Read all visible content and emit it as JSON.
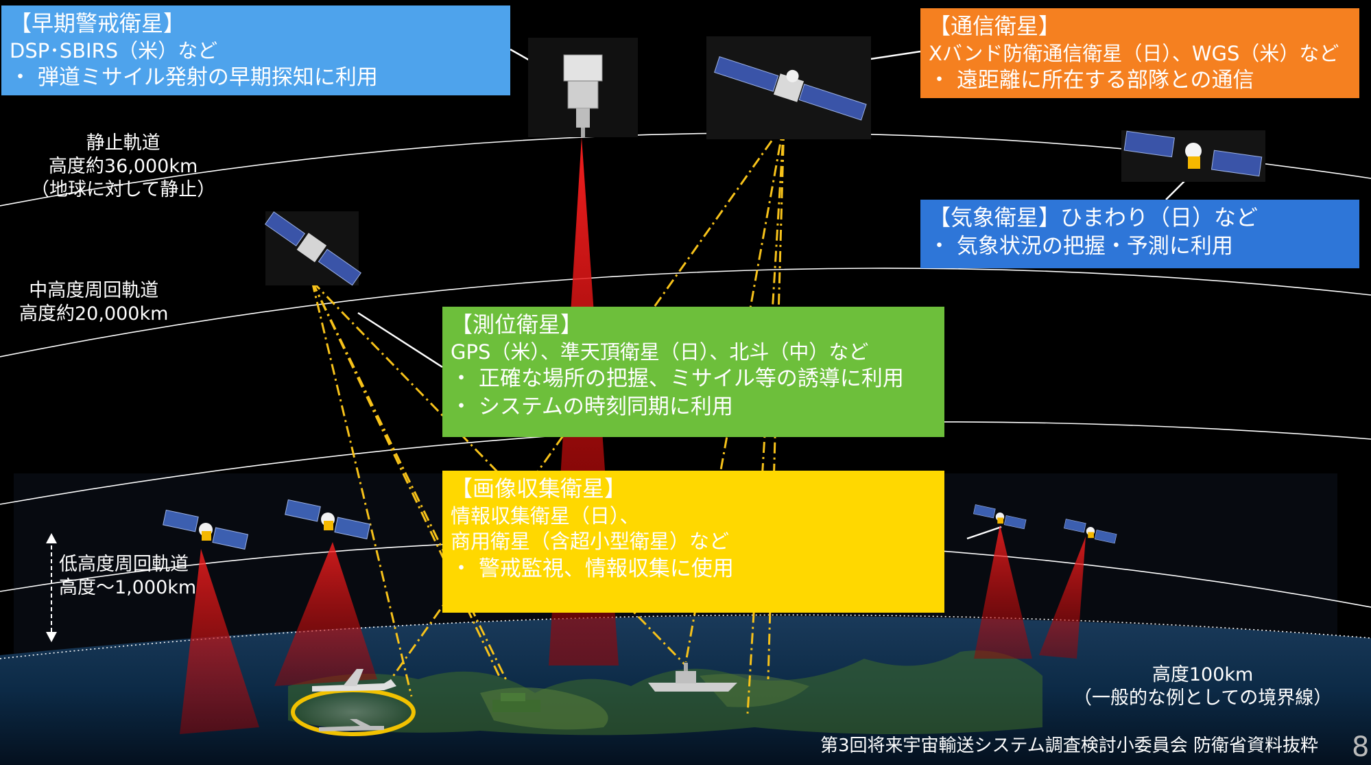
{
  "early_warning": {
    "title": "【早期警戒衛星】",
    "examples": "DSP･SBIRS（米）など",
    "bullet": "・ 弾道ミサイル発射の早期探知に利用"
  },
  "communications": {
    "title": "【通信衛星】",
    "examples": "Xバンド防衛通信衛星（日）、WGS（米）など",
    "bullet": "・ 遠距離に所在する部隊との通信"
  },
  "weather": {
    "title": "【気象衛星】ひまわり（日）など",
    "bullet": "・ 気象状況の把握・予測に利用"
  },
  "positioning": {
    "title": "【測位衛星】",
    "examples": "GPS（米）、準天頂衛星（日）、北斗（中）など",
    "bullet1": "・ 正確な場所の把握、ミサイル等の誘導に利用",
    "bullet2": "・ システムの時刻同期に利用"
  },
  "imaging": {
    "title": "【画像収集衛星】",
    "line1": "情報収集衛星（日）、",
    "line2": "商用衛星（含超小型衛星）など",
    "bullet": "・ 警戒監視、情報収集に使用"
  },
  "orbits": {
    "geo_line1": "静止軌道",
    "geo_line2": "高度約36,000km",
    "geo_line3": "（地球に対して静止）",
    "meo_line1": "中高度周回軌道",
    "meo_line2": "高度約20,000km",
    "leo_line1": "低高度周回軌道",
    "leo_line2": "高度～1,000km",
    "karman_line1": "高度100km",
    "karman_line2": "（一般的な例としての境界線）"
  },
  "footer": {
    "credit": "第3回将来宇宙輸送システム調査検討小委員会 防衛省資料抜粋",
    "page_number": "8"
  },
  "colors": {
    "early_warning": "#4ea3ec",
    "communications": "#f58020",
    "weather": "#2e76d8",
    "positioning": "#6dbf3b",
    "imaging": "#ffd800",
    "sensor_beam": "#d01818",
    "signal_line": "#f7c21a"
  },
  "icons": [
    "satellite-icon",
    "aircraft-icon",
    "ship-icon",
    "ground-vehicle-icon"
  ]
}
